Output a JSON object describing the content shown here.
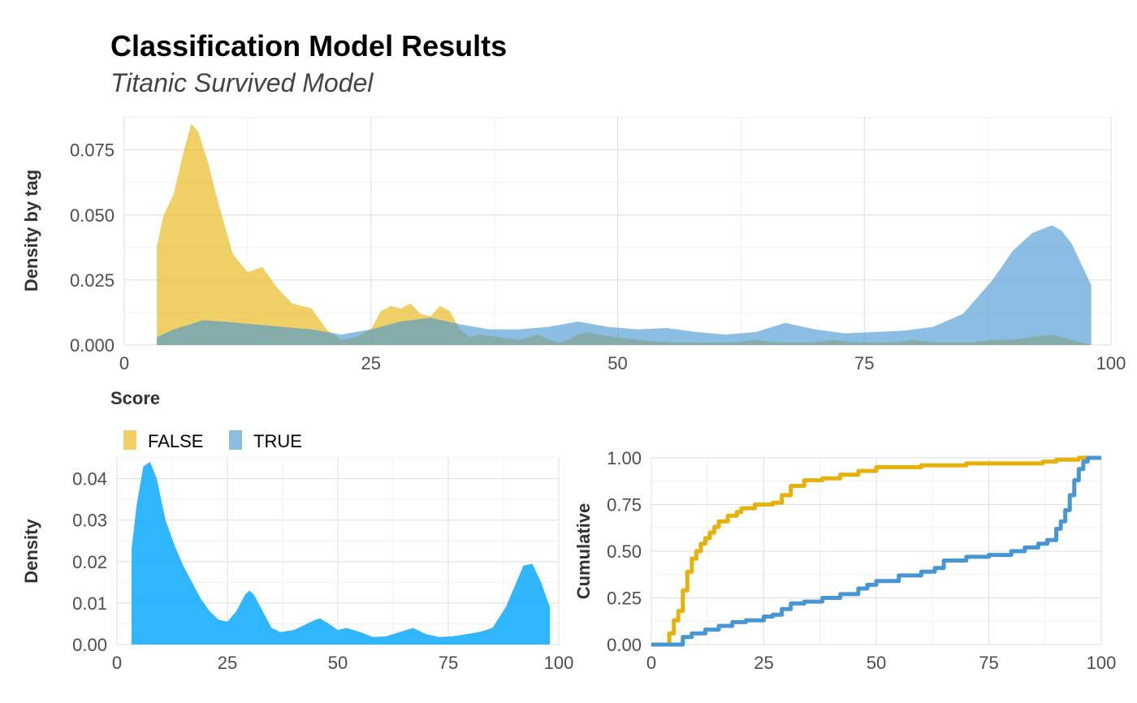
{
  "title": "Classification Model Results",
  "subtitle": "Titanic Survived Model",
  "colors": {
    "false": "#E7B10A",
    "true": "#4596D2",
    "density": "#1EB0FF",
    "overlap": "#7FA4A0"
  },
  "chart_data": [
    {
      "type": "area",
      "name": "density-by-tag",
      "xlabel": "Score",
      "ylabel": "Density by tag",
      "xlim": [
        0,
        100
      ],
      "ylim": [
        0,
        0.088
      ],
      "xticks": [
        0,
        25,
        50,
        75,
        100
      ],
      "xtick_labels": [
        "0",
        "25",
        "50",
        "75",
        "100"
      ],
      "yticks": [
        0,
        0.025,
        0.05,
        0.075
      ],
      "ytick_labels": [
        "0.000",
        "0.025",
        "0.050",
        "0.075"
      ],
      "grid": true,
      "legend": {
        "placement": "bottom-left",
        "entries": [
          {
            "label": "FALSE"
          },
          {
            "label": "TRUE"
          }
        ]
      },
      "series": [
        {
          "name": "FALSE",
          "x": [
            3.3,
            4,
            5,
            6,
            6.8,
            7.5,
            8.5,
            9.5,
            11,
            12.5,
            14,
            15.5,
            17,
            19,
            20.5,
            22,
            23.5,
            25,
            26,
            27,
            28,
            29,
            30,
            31,
            32,
            33,
            34,
            35,
            36,
            38,
            40,
            42,
            43,
            44,
            45,
            46,
            47,
            48,
            50,
            52,
            55,
            58,
            62,
            64,
            66,
            70,
            72,
            74,
            78,
            80,
            82,
            86,
            88,
            90,
            92,
            94,
            96,
            98
          ],
          "y": [
            0.038,
            0.05,
            0.058,
            0.074,
            0.085,
            0.082,
            0.07,
            0.055,
            0.035,
            0.028,
            0.03,
            0.022,
            0.016,
            0.014,
            0.006,
            0.002,
            0.003,
            0.006,
            0.013,
            0.015,
            0.014,
            0.016,
            0.012,
            0.011,
            0.015,
            0.013,
            0.006,
            0.003,
            0.004,
            0.003,
            0.002,
            0.004,
            0.002,
            0.001,
            0.002,
            0.004,
            0.005,
            0.004,
            0.003,
            0.002,
            0.001,
            0.001,
            0.001,
            0.002,
            0.001,
            0.001,
            0.002,
            0.001,
            0.001,
            0.002,
            0.001,
            0.001,
            0.002,
            0.002,
            0.003,
            0.004,
            0.002,
            0.0
          ]
        },
        {
          "name": "TRUE",
          "x": [
            3.3,
            5,
            8,
            10,
            13,
            16,
            19,
            22,
            25,
            28,
            31,
            34,
            37,
            40,
            43,
            46,
            49,
            52,
            55,
            58,
            61,
            64,
            67,
            70,
            73,
            76,
            79,
            82,
            85,
            88,
            90,
            92,
            94,
            95,
            96,
            97,
            98
          ],
          "y": [
            0.003,
            0.006,
            0.0095,
            0.009,
            0.008,
            0.007,
            0.006,
            0.004,
            0.006,
            0.009,
            0.0105,
            0.008,
            0.006,
            0.006,
            0.007,
            0.009,
            0.007,
            0.006,
            0.0065,
            0.005,
            0.004,
            0.005,
            0.0085,
            0.006,
            0.0045,
            0.005,
            0.0055,
            0.007,
            0.012,
            0.025,
            0.036,
            0.043,
            0.046,
            0.044,
            0.039,
            0.031,
            0.023
          ]
        }
      ]
    },
    {
      "type": "area",
      "name": "density-all",
      "xlabel": "",
      "ylabel": "Density",
      "xlim": [
        0,
        100
      ],
      "ylim": [
        0,
        0.045
      ],
      "xticks": [
        0,
        25,
        50,
        75,
        100
      ],
      "xtick_labels": [
        "0",
        "25",
        "50",
        "75",
        "100"
      ],
      "yticks": [
        0,
        0.01,
        0.02,
        0.03,
        0.04
      ],
      "ytick_labels": [
        "0.00",
        "0.01",
        "0.02",
        "0.03",
        "0.04"
      ],
      "grid": true,
      "series": [
        {
          "name": "",
          "x": [
            3.3,
            4.5,
            6,
            7.5,
            9,
            11,
            13,
            15,
            17,
            19,
            21,
            23,
            25,
            27,
            29,
            30,
            31,
            33,
            35,
            37,
            40,
            43,
            45,
            46,
            48,
            50,
            52,
            55,
            58,
            61,
            64,
            67,
            70,
            73,
            76,
            79,
            82,
            85,
            88,
            90,
            92,
            94,
            96,
            98
          ],
          "y": [
            0.023,
            0.034,
            0.043,
            0.044,
            0.04,
            0.03,
            0.024,
            0.019,
            0.015,
            0.011,
            0.008,
            0.006,
            0.0055,
            0.008,
            0.012,
            0.013,
            0.012,
            0.008,
            0.004,
            0.003,
            0.0035,
            0.005,
            0.006,
            0.0063,
            0.005,
            0.0035,
            0.004,
            0.003,
            0.0018,
            0.002,
            0.003,
            0.004,
            0.0025,
            0.0018,
            0.002,
            0.0025,
            0.003,
            0.004,
            0.009,
            0.014,
            0.019,
            0.0195,
            0.015,
            0.009
          ]
        }
      ]
    },
    {
      "type": "line",
      "name": "cumulative",
      "xlabel": "",
      "ylabel": "Cumulative",
      "xlim": [
        0,
        100
      ],
      "ylim": [
        0,
        1
      ],
      "xticks": [
        0,
        25,
        50,
        75,
        100
      ],
      "xtick_labels": [
        "0",
        "25",
        "50",
        "75",
        "100"
      ],
      "yticks": [
        0,
        0.25,
        0.5,
        0.75,
        1
      ],
      "ytick_labels": [
        "0.00",
        "0.25",
        "0.50",
        "0.75",
        "1.00"
      ],
      "grid": true,
      "series": [
        {
          "name": "FALSE",
          "x": [
            0,
            3.3,
            4,
            5,
            6,
            7,
            8,
            9,
            10,
            11,
            12,
            13,
            14,
            15,
            17,
            19,
            20,
            23,
            27,
            29,
            31,
            34,
            38,
            42,
            46,
            50,
            60,
            70,
            80,
            87,
            90,
            95,
            98,
            100
          ],
          "y": [
            0,
            0,
            0.06,
            0.13,
            0.18,
            0.29,
            0.39,
            0.46,
            0.5,
            0.54,
            0.57,
            0.6,
            0.63,
            0.66,
            0.69,
            0.71,
            0.73,
            0.75,
            0.76,
            0.8,
            0.85,
            0.88,
            0.89,
            0.91,
            0.93,
            0.95,
            0.96,
            0.97,
            0.97,
            0.98,
            0.99,
            1.0,
            1.0,
            1.0
          ]
        },
        {
          "name": "TRUE",
          "x": [
            0,
            6,
            7,
            9,
            12,
            15,
            18,
            21,
            25,
            27,
            29,
            31,
            34,
            38,
            42,
            46,
            48,
            50,
            55,
            60,
            63,
            65,
            70,
            75,
            80,
            83,
            86,
            88,
            90,
            91,
            92,
            93,
            94,
            95,
            96,
            97,
            100
          ],
          "y": [
            0,
            0,
            0.04,
            0.06,
            0.08,
            0.1,
            0.12,
            0.13,
            0.15,
            0.16,
            0.19,
            0.22,
            0.23,
            0.25,
            0.27,
            0.3,
            0.32,
            0.34,
            0.37,
            0.39,
            0.41,
            0.45,
            0.47,
            0.48,
            0.5,
            0.52,
            0.54,
            0.56,
            0.62,
            0.66,
            0.72,
            0.8,
            0.88,
            0.94,
            0.98,
            1.0,
            1.0
          ]
        }
      ]
    }
  ]
}
